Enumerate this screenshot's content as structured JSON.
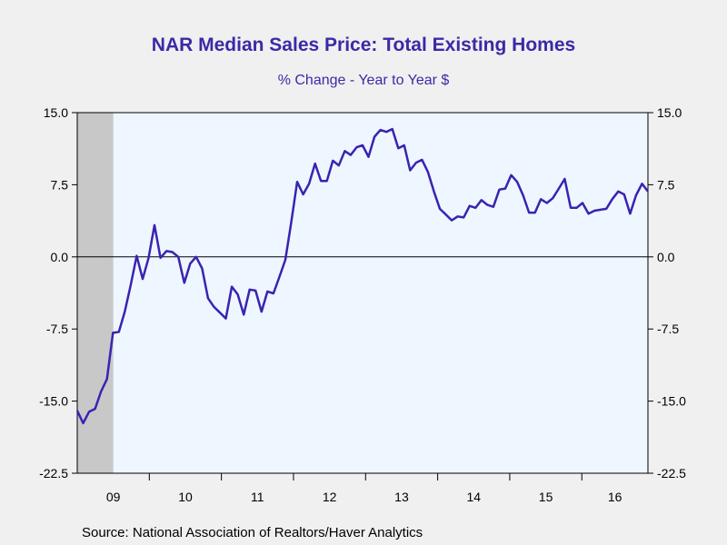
{
  "colors": {
    "title": "#3a2aa6",
    "line": "#3a23b0",
    "plot_bg": "#eef6ff",
    "recession": "#c8c8c8",
    "page_bg": "#f0f0f0"
  },
  "chart_data": {
    "type": "line",
    "title": "NAR Median Sales Price: Total Existing Homes",
    "subtitle": "% Change - Year to Year    $",
    "source": "Source:  National Association of Realtors/Haver Analytics",
    "ylim": [
      -22.5,
      15.0
    ],
    "yticks": [
      15.0,
      7.5,
      0.0,
      -7.5,
      -15.0,
      -22.5
    ],
    "ytick_labels": [
      "15.0",
      "7.5",
      "0.0",
      "-7.5",
      "-15.0",
      "-22.5"
    ],
    "xlim": [
      2009.0,
      2016.917
    ],
    "x_tick_labels": [
      "09",
      "10",
      "11",
      "12",
      "13",
      "14",
      "15",
      "16"
    ],
    "x_label_positions": [
      2009.0,
      2010.0,
      2011.0,
      2012.0,
      2013.0,
      2014.0,
      2015.0,
      2016.0
    ],
    "recession_shading": [
      2009.0,
      2009.5
    ],
    "zero_line": true,
    "series": [
      {
        "values": [
          -16.0,
          -17.3,
          -16.1,
          -15.8,
          -14.0,
          -12.7,
          -7.9,
          -7.8,
          -5.7,
          -2.9,
          0.1,
          -2.3,
          -0.1,
          3.3,
          -0.1,
          0.6,
          0.5,
          0.0,
          -2.7,
          -0.7,
          0.0,
          -1.2,
          -4.3,
          -5.2,
          -5.8,
          -6.4,
          -3.1,
          -3.9,
          -6.0,
          -3.4,
          -3.5,
          -5.7,
          -3.6,
          -3.8,
          -2.1,
          -0.3,
          3.6,
          7.8,
          6.5,
          7.6,
          9.7,
          7.9,
          7.9,
          10.0,
          9.5,
          11.0,
          10.6,
          11.4,
          11.6,
          10.4,
          12.5,
          13.2,
          13.0,
          13.3,
          11.3,
          11.6,
          9.0,
          9.8,
          10.1,
          8.8,
          6.8,
          5.0,
          4.4,
          3.8,
          4.2,
          4.1,
          5.3,
          5.1,
          5.9,
          5.4,
          5.2,
          7.0,
          7.1,
          8.5,
          7.8,
          6.4,
          4.6,
          4.6,
          6.0,
          5.6,
          6.1,
          7.1,
          8.1,
          5.1,
          5.1,
          5.6,
          4.5,
          4.8,
          4.9,
          5.0,
          6.0,
          6.8,
          6.5,
          4.5,
          6.4,
          7.6,
          6.8
        ]
      }
    ]
  }
}
